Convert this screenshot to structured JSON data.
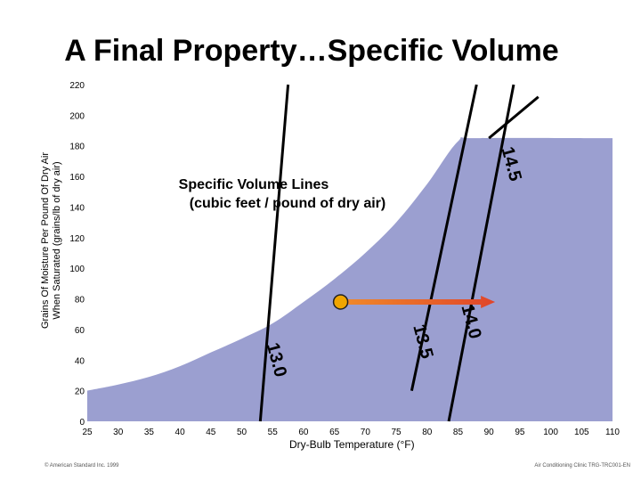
{
  "slide": {
    "title": "A Final Property…Specific Volume",
    "footer_left": "© American Standard Inc. 1999",
    "footer_right": "Air Conditioning Clinic TRG-TRC001-EN"
  },
  "chart_data": {
    "type": "area",
    "title": "",
    "xlabel": "Dry-Bulb Temperature (°F)",
    "ylabel_lines": [
      "Grains Of Moisture Per Pound Of Dry Air",
      "When Saturated (grains/lb of dry air)"
    ],
    "xlim": [
      25,
      110
    ],
    "ylim": [
      0,
      220
    ],
    "x_ticks": [
      25,
      30,
      35,
      40,
      45,
      50,
      55,
      60,
      65,
      70,
      75,
      80,
      85,
      90,
      95,
      100,
      105,
      110
    ],
    "y_ticks": [
      0,
      20,
      40,
      60,
      80,
      100,
      120,
      140,
      160,
      180,
      200,
      220
    ],
    "grid": false,
    "series": [
      {
        "x": [
          25,
          30,
          35,
          40,
          45,
          50,
          55,
          60,
          65,
          70,
          75,
          80,
          85,
          88,
          110
        ],
        "values": [
          20,
          24,
          29,
          36,
          45,
          54,
          64,
          78,
          93,
          110,
          130,
          155,
          183,
          185,
          185
        ]
      }
    ],
    "specific_volume_lines": [
      {
        "label": "13.0",
        "x": [
          53,
          57.5
        ],
        "y": [
          0,
          220
        ]
      },
      {
        "label": "13.5",
        "x": [
          77.5,
          88
        ],
        "y": [
          20,
          220
        ]
      },
      {
        "label": "14.0",
        "x": [
          83.5,
          94
        ],
        "y": [
          0,
          220
        ]
      },
      {
        "label": "14.5",
        "x": [
          90,
          98
        ],
        "y": [
          185,
          212
        ]
      }
    ],
    "annotation": {
      "text_lines": [
        "Specific Volume Lines",
        "(cubic feet / pound of dry air)"
      ]
    },
    "point": {
      "x": 66,
      "y": 78
    },
    "arrow": {
      "x_start": 66,
      "x_end": 91,
      "y": 78
    },
    "colors": {
      "area": "#9b9fd0",
      "point": "#f0a500",
      "arrow": "#e0452a",
      "lines": "#000000"
    }
  }
}
